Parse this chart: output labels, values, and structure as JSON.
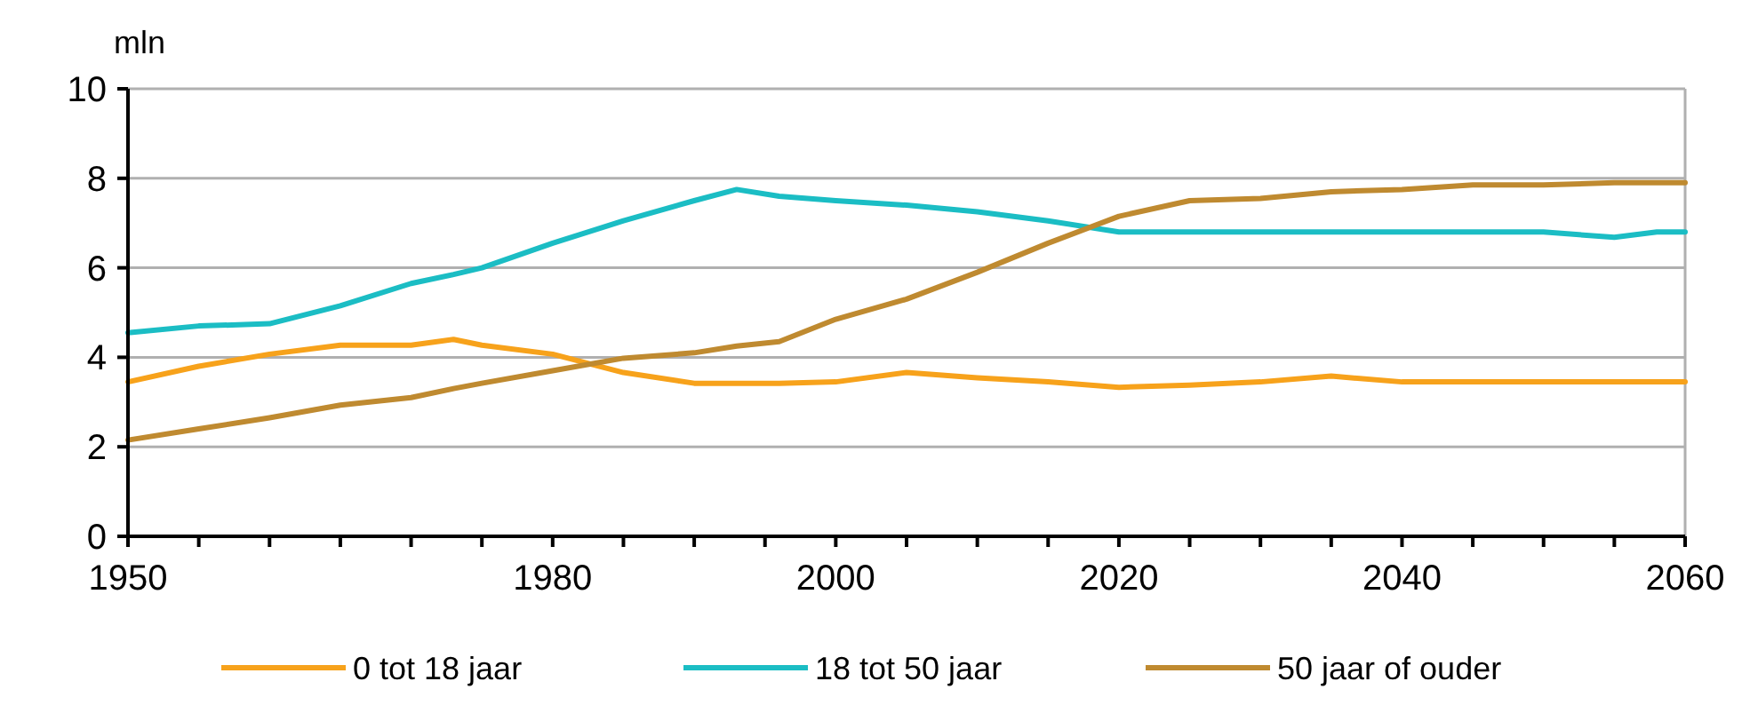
{
  "chart_data": {
    "type": "line",
    "ylabel": "mln",
    "x": [
      1950,
      1955,
      1960,
      1965,
      1970,
      1973,
      1975,
      1980,
      1985,
      1990,
      1993,
      1996,
      2000,
      2005,
      2010,
      2015,
      2020,
      2025,
      2030,
      2035,
      2040,
      2045,
      2050,
      2055,
      2058,
      2060
    ],
    "xlim": [
      1950,
      2060
    ],
    "xticks": [
      {
        "value": 1950,
        "label": "1950"
      },
      {
        "value": 1955,
        "label": null
      },
      {
        "value": 1960,
        "label": null
      },
      {
        "value": 1965,
        "label": null
      },
      {
        "value": 1970,
        "label": null
      },
      {
        "value": 1975,
        "label": null
      },
      {
        "value": 1980,
        "label": "1980"
      },
      {
        "value": 1985,
        "label": null
      },
      {
        "value": 1990,
        "label": null
      },
      {
        "value": 1995,
        "label": null
      },
      {
        "value": 2000,
        "label": "2000"
      },
      {
        "value": 2005,
        "label": null
      },
      {
        "value": 2010,
        "label": null
      },
      {
        "value": 2015,
        "label": null
      },
      {
        "value": 2020,
        "label": "2020"
      },
      {
        "value": 2025,
        "label": null
      },
      {
        "value": 2030,
        "label": null
      },
      {
        "value": 2035,
        "label": null
      },
      {
        "value": 2040,
        "label": "2040"
      },
      {
        "value": 2045,
        "label": null
      },
      {
        "value": 2050,
        "label": null
      },
      {
        "value": 2055,
        "label": null
      },
      {
        "value": 2060,
        "label": "2060"
      }
    ],
    "ylim": [
      0,
      10
    ],
    "yticks": [
      0,
      2,
      4,
      6,
      8,
      10
    ],
    "grid": "y",
    "legend": "bottom",
    "line_style": "solid",
    "marker": "none",
    "series": [
      {
        "name": "0 tot 18 jaar",
        "color": "#f7a21b",
        "values": [
          3.45,
          3.8,
          4.07,
          4.27,
          4.27,
          4.4,
          4.27,
          4.07,
          3.66,
          3.42,
          3.42,
          3.42,
          3.45,
          3.66,
          3.54,
          3.45,
          3.33,
          3.38,
          3.45,
          3.58,
          3.45,
          3.45,
          3.45,
          3.45,
          3.45,
          3.45
        ]
      },
      {
        "name": "18 tot 50 jaar",
        "color": "#1bbdc4",
        "values": [
          4.55,
          4.7,
          4.75,
          5.15,
          5.65,
          5.85,
          6.0,
          6.55,
          7.05,
          7.5,
          7.75,
          7.6,
          7.5,
          7.4,
          7.25,
          7.05,
          6.8,
          6.8,
          6.8,
          6.8,
          6.8,
          6.8,
          6.8,
          6.68,
          6.8,
          6.8
        ]
      },
      {
        "name": "50 jaar of ouder",
        "color": "#bf8a30",
        "values": [
          2.15,
          2.4,
          2.65,
          2.93,
          3.1,
          3.3,
          3.42,
          3.7,
          3.98,
          4.1,
          4.25,
          4.35,
          4.85,
          5.3,
          5.9,
          6.55,
          7.15,
          7.5,
          7.55,
          7.7,
          7.75,
          7.85,
          7.85,
          7.9,
          7.9,
          7.9
        ]
      }
    ]
  }
}
